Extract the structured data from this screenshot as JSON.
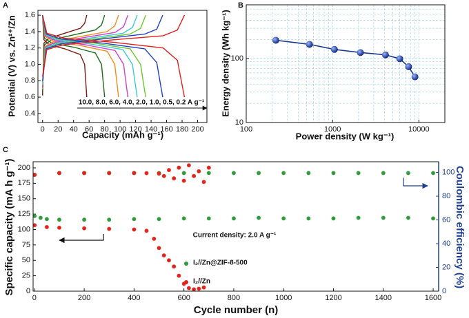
{
  "chart_data": [
    {
      "type": "line",
      "panel_label": "A",
      "x_label": "Capacity (mAh g⁻¹)",
      "y_label": "Potential (V) vs. Zn²⁺/Zn",
      "annotation": "10.0, 8.0, 6.0, 4.0, 2.0, 1.0, 0.5, 0.2 A g⁻¹",
      "xlim": [
        -6,
        212
      ],
      "ylim": [
        0.29,
        1.66
      ],
      "xticks": [
        0,
        20,
        40,
        60,
        80,
        100,
        120,
        140,
        160,
        180,
        200
      ],
      "yticks": [
        0.4,
        0.6,
        0.8,
        {
          "value": 1,
          "label": "1.0"
        },
        1.2,
        1.4,
        1.6
      ],
      "series": [
        {
          "color": "#7a1a12",
          "x": [
            0,
            1.7,
            8.6,
            28.5,
            48.5,
            54.2,
            57,
            null,
            0,
            1.7,
            8.6,
            28.5,
            48.5,
            54.2,
            57
          ],
          "values": [
            1.6,
            1.3,
            1.24,
            1.19,
            1.12,
            1.0,
            0.6,
            null,
            0.62,
            1.26,
            1.32,
            1.38,
            1.44,
            1.5,
            1.6
          ]
        },
        {
          "color": "#1e6b1e",
          "x": [
            0,
            2.4,
            12,
            40,
            68,
            76,
            80,
            null,
            0,
            2.4,
            12,
            40,
            68,
            76,
            80
          ],
          "values": [
            1.6,
            1.32,
            1.26,
            1.21,
            1.14,
            1.0,
            0.6,
            null,
            0.66,
            1.24,
            1.3,
            1.36,
            1.42,
            1.48,
            1.6
          ]
        },
        {
          "color": "#f28c1c",
          "x": [
            0,
            2.9,
            14.7,
            49,
            83.3,
            93.1,
            98,
            null,
            0,
            2.9,
            14.7,
            49,
            83.3,
            93.1,
            98
          ],
          "values": [
            1.6,
            1.34,
            1.28,
            1.23,
            1.16,
            1.0,
            0.6,
            null,
            0.7,
            1.22,
            1.28,
            1.34,
            1.4,
            1.47,
            1.6
          ]
        },
        {
          "color": "#d040d0",
          "x": [
            0,
            3.3,
            16.5,
            55,
            93.5,
            104.5,
            110,
            null,
            0,
            3.3,
            16.5,
            55,
            93.5,
            104.5,
            110
          ],
          "values": [
            1.6,
            1.35,
            1.29,
            1.24,
            1.17,
            1.0,
            0.6,
            null,
            0.72,
            1.21,
            1.27,
            1.33,
            1.39,
            1.46,
            1.6
          ]
        },
        {
          "color": "#3cc8d8",
          "x": [
            0,
            3.7,
            18.3,
            61,
            103.7,
            115.9,
            122,
            null,
            0,
            3.7,
            18.3,
            61,
            103.7,
            115.9,
            122
          ],
          "values": [
            1.6,
            1.36,
            1.3,
            1.25,
            1.18,
            1.0,
            0.6,
            null,
            0.75,
            1.2,
            1.26,
            1.32,
            1.38,
            1.45,
            1.6
          ]
        },
        {
          "color": "#6cc62c",
          "x": [
            0,
            4,
            20,
            66.5,
            113,
            126.4,
            133,
            null,
            0,
            4,
            20,
            66.5,
            113,
            126.4,
            133
          ],
          "values": [
            1.6,
            1.37,
            1.31,
            1.26,
            1.19,
            1.0,
            0.6,
            null,
            0.78,
            1.19,
            1.25,
            1.31,
            1.37,
            1.44,
            1.6
          ]
        },
        {
          "color": "#2040c8",
          "x": [
            0,
            4.7,
            23.3,
            77.5,
            131.8,
            147.3,
            155,
            null,
            0,
            4.7,
            23.3,
            77.5,
            131.8,
            147.3,
            155
          ],
          "values": [
            1.6,
            1.37,
            1.31,
            1.26,
            1.19,
            1.02,
            0.6,
            null,
            0.8,
            1.19,
            1.25,
            1.31,
            1.37,
            1.43,
            1.6
          ]
        },
        {
          "color": "#e0201c",
          "x": [
            0,
            5.5,
            27.5,
            91.5,
            155.6,
            173.9,
            183,
            null,
            0,
            5.5,
            27.5,
            91.5,
            155.6,
            173.9,
            183
          ],
          "values": [
            1.6,
            1.38,
            1.32,
            1.27,
            1.2,
            1.05,
            0.6,
            null,
            0.85,
            1.18,
            1.24,
            1.3,
            1.35,
            1.42,
            1.6
          ]
        }
      ]
    },
    {
      "type": "line",
      "panel_label": "B",
      "markers": true,
      "xlog": true,
      "ylog": true,
      "grid": true,
      "minor_grid": true,
      "x_label": "Power density (W kg⁻¹)",
      "y_label": "Energy density (Wh kg⁻¹)",
      "xlim": [
        100,
        20000
      ],
      "ylim": [
        10,
        700
      ],
      "xticks": [
        100,
        1000,
        10000
      ],
      "yticks": [
        10,
        100
      ],
      "series": [
        {
          "color": "#1a3a8a",
          "x": [
            220,
            540,
            1050,
            2100,
            4100,
            6000,
            7600,
            9000
          ],
          "values": [
            195,
            168,
            140,
            125,
            115,
            100,
            75,
            52
          ]
        }
      ]
    },
    {
      "type": "scatter",
      "panel_label": "C",
      "x_label": "Cycle number (n)",
      "y_label": "Specific capacity (mA h g⁻¹)",
      "y2_label": "Coulombic efficiency (%)",
      "annotation": "Current density: 2.0 A g⁻¹",
      "y2_color": "#1f3f8f",
      "xlim": [
        -5,
        1622
      ],
      "ylim": [
        0,
        210
      ],
      "y2lim": [
        0,
        109
      ],
      "xticks": [
        0,
        200,
        400,
        600,
        800,
        1000,
        1200,
        1400,
        1600
      ],
      "yticks": [
        0,
        25,
        50,
        75,
        100,
        125,
        150,
        175,
        200
      ],
      "y2ticks": [
        0,
        20,
        40,
        60,
        80,
        100
      ],
      "series": [
        {
          "name": "I₂//Zn@ZIF-8-500",
          "color": "#2e9a3a",
          "x": [
            1,
            25,
            50,
            100,
            200,
            300,
            400,
            500,
            600,
            700,
            800,
            900,
            1000,
            1100,
            1200,
            1300,
            1400,
            1500,
            1600
          ],
          "values": [
            122,
            119,
            117,
            116,
            116,
            116,
            117,
            117,
            118,
            118,
            118,
            119,
            118,
            118,
            118,
            119,
            119,
            119,
            118
          ]
        },
        {
          "name": "I₂//Zn",
          "color": "#e0241c",
          "x": [
            1,
            50,
            100,
            200,
            300,
            400,
            450,
            480,
            500,
            520,
            540,
            560,
            580,
            600,
            620,
            640,
            660,
            680
          ],
          "values": [
            107,
            104,
            103,
            102,
            101,
            100,
            98,
            85,
            70,
            58,
            50,
            40,
            25,
            12,
            5,
            3,
            4,
            6
          ]
        },
        {
          "color": "#2e9a3a",
          "axis": "y2",
          "x": [
            1,
            100,
            200,
            300,
            400,
            500,
            600,
            700,
            800,
            900,
            1000,
            1100,
            1200,
            1300,
            1400,
            1500,
            1600
          ],
          "values": [
            98,
            99.5,
            99.5,
            99.5,
            99.5,
            99.5,
            99.5,
            99.5,
            99.5,
            99.5,
            99.5,
            99.5,
            99.5,
            99.5,
            99.5,
            99.5,
            99.5
          ]
        },
        {
          "color": "#e0241c",
          "axis": "y2",
          "x": [
            1,
            100,
            200,
            300,
            400,
            450,
            500,
            520,
            540,
            560,
            580,
            600,
            620,
            640,
            660,
            680,
            700
          ],
          "values": [
            98,
            99.5,
            99.5,
            99.5,
            99.5,
            99.4,
            99,
            97,
            102,
            95,
            104,
            93,
            106,
            97,
            101,
            92,
            104
          ]
        }
      ]
    }
  ]
}
